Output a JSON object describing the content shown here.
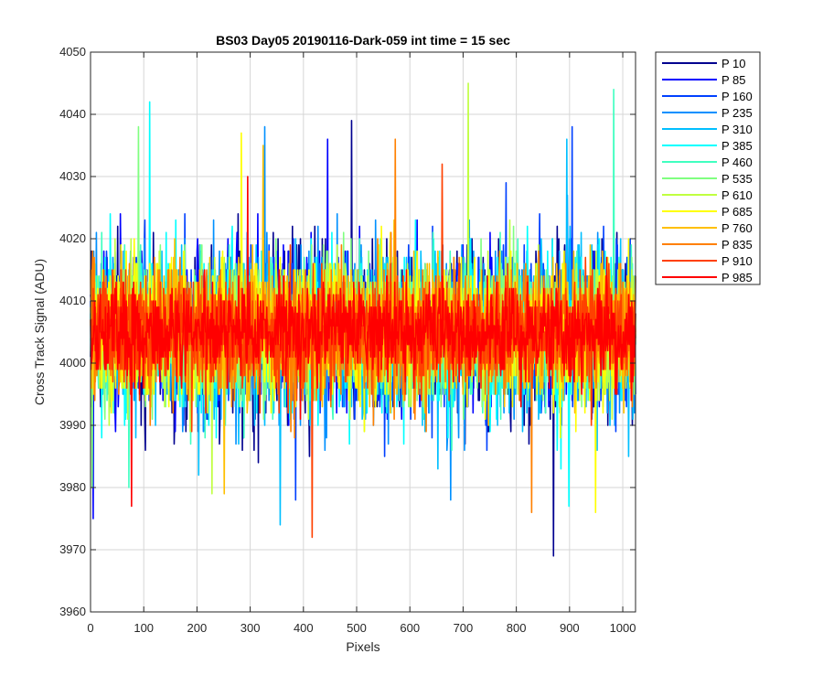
{
  "chart_data": {
    "type": "line",
    "title": "BS03 Day05 20190116-Dark-059 int time = 15 sec",
    "xlabel": "Pixels",
    "ylabel": "Cross Track Signal (ADU)",
    "xlim": [
      0,
      1024
    ],
    "ylim": [
      3960,
      4050
    ],
    "x_ticks": [
      0,
      100,
      200,
      300,
      400,
      500,
      600,
      700,
      800,
      900,
      1000
    ],
    "y_ticks": [
      3960,
      3970,
      3980,
      3990,
      4000,
      4010,
      4020,
      4030,
      4040,
      4050
    ],
    "grid": true,
    "legend_position": "outside-top-right",
    "x_points": 1024,
    "series": [
      {
        "name": "P 10",
        "color": "#00008f",
        "mean": 4005,
        "spread": 11,
        "approx_min": 3969,
        "approx_max": 4039
      },
      {
        "name": "P 85",
        "color": "#0000ff",
        "mean": 4005,
        "spread": 10,
        "approx_min": 3975,
        "approx_max": 4036
      },
      {
        "name": "P 160",
        "color": "#0040ff",
        "mean": 4005,
        "spread": 10,
        "approx_min": 3978,
        "approx_max": 4038
      },
      {
        "name": "P 235",
        "color": "#0090ff",
        "mean": 4005,
        "spread": 10,
        "approx_min": 3978,
        "approx_max": 4038
      },
      {
        "name": "P 310",
        "color": "#00bfff",
        "mean": 4005,
        "spread": 10,
        "approx_min": 3974,
        "approx_max": 4036
      },
      {
        "name": "P 385",
        "color": "#00ffff",
        "mean": 4005,
        "spread": 10,
        "approx_min": 3977,
        "approx_max": 4042
      },
      {
        "name": "P 460",
        "color": "#40ffc0",
        "mean": 4005,
        "spread": 9,
        "approx_min": 3980,
        "approx_max": 4044
      },
      {
        "name": "P 535",
        "color": "#80ff80",
        "mean": 4005,
        "spread": 9,
        "approx_min": 3980,
        "approx_max": 4038
      },
      {
        "name": "P 610",
        "color": "#c0ff40",
        "mean": 4005,
        "spread": 9,
        "approx_min": 3979,
        "approx_max": 4045
      },
      {
        "name": "P 685",
        "color": "#ffff00",
        "mean": 4005,
        "spread": 9,
        "approx_min": 3976,
        "approx_max": 4037
      },
      {
        "name": "P 760",
        "color": "#ffbf00",
        "mean": 4005,
        "spread": 8,
        "approx_min": 3979,
        "approx_max": 4035
      },
      {
        "name": "P 835",
        "color": "#ff8000",
        "mean": 4005,
        "spread": 8,
        "approx_min": 3976,
        "approx_max": 4036
      },
      {
        "name": "P 910",
        "color": "#ff4000",
        "mean": 4005,
        "spread": 7,
        "approx_min": 3972,
        "approx_max": 4032
      },
      {
        "name": "P 985",
        "color": "#ff0000",
        "mean": 4005,
        "spread": 6,
        "approx_min": 3977,
        "approx_max": 4030
      }
    ]
  }
}
